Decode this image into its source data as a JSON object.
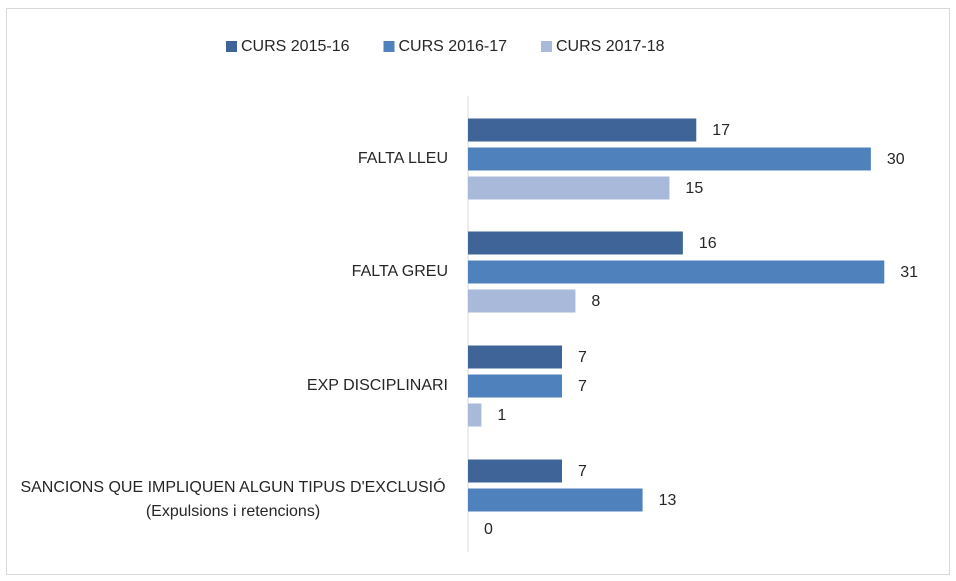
{
  "chart_data": {
    "type": "bar",
    "orientation": "horizontal",
    "categories": [
      "FALTA LLEU",
      "FALTA GREU",
      "EXP DISCIPLINARI",
      "SANCIONS QUE IMPLIQUEN ALGUN TIPUS D'EXCLUSIÓ (Expulsions i retencions)"
    ],
    "series": [
      {
        "name": "CURS 2015-16",
        "color": "#3f6598",
        "values": [
          17,
          16,
          7,
          7
        ]
      },
      {
        "name": "CURS 2016-17",
        "color": "#4f81bd",
        "values": [
          30,
          31,
          7,
          13
        ]
      },
      {
        "name": "CURS 2017-18",
        "color": "#a9b9d9",
        "values": [
          15,
          8,
          1,
          0
        ]
      }
    ],
    "xlim": [
      0,
      35
    ],
    "legend": "top"
  }
}
